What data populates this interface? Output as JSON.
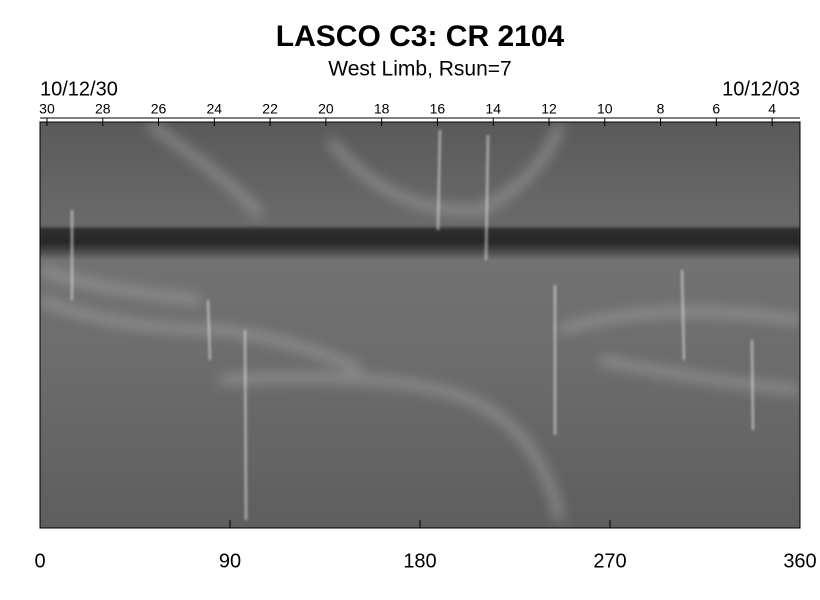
{
  "chart_data": {
    "type": "synoptic-map",
    "title": "LASCO C3: CR 2104",
    "subtitle": "West Limb, Rsun=7",
    "start_date": "10/12/30",
    "end_date": "10/12/03",
    "xlim": [
      0,
      360
    ],
    "xticks": [
      0,
      90,
      180,
      270,
      360
    ],
    "x2lim": [
      30.25,
      3.0
    ],
    "x2ticks": [
      30,
      28,
      26,
      24,
      22,
      20,
      18,
      16,
      14,
      12,
      10,
      8,
      6,
      4
    ]
  }
}
